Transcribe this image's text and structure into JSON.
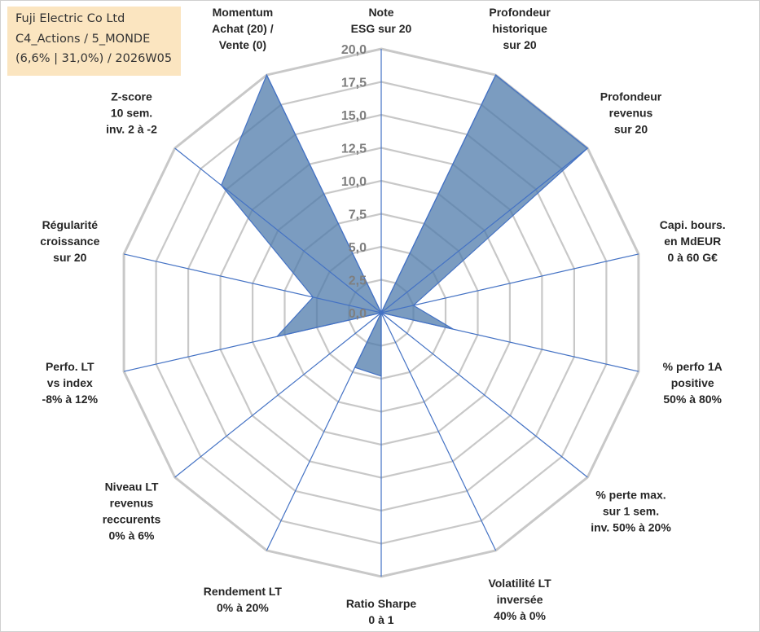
{
  "info": {
    "line1": "Fuji Electric Co Ltd",
    "line2": "C4_Actions / 5_MONDE",
    "line3": "(6,6% | 31,0%) / 2026W05"
  },
  "chart_data": {
    "type": "radar",
    "rmin": 0,
    "rmax": 20,
    "ticks": [
      "0,0",
      "2,5",
      "5,0",
      "7,5",
      "10,0",
      "12,5",
      "15,0",
      "17,5",
      "20,0"
    ],
    "categories": [
      [
        "Note",
        "ESG sur 20"
      ],
      [
        "Profondeur",
        "historique",
        "sur 20"
      ],
      [
        "Profondeur",
        "revenus",
        "sur 20"
      ],
      [
        "Capi. bours.",
        "en MdEUR",
        "0 à 60 G€"
      ],
      [
        "% perfo 1A",
        "positive",
        "50% à 80%"
      ],
      [
        "% perte max.",
        "sur 1 sem.",
        "inv. 50% à 20%"
      ],
      [
        "Volatilité LT",
        "inversée",
        "40% à 0%"
      ],
      [
        "Ratio Sharpe",
        "0 à 1"
      ],
      [
        "Rendement LT",
        "0% à 20%"
      ],
      [
        "Niveau LT",
        "revenus",
        "reccurents",
        "0% à 6%"
      ],
      [
        "Perfo. LT",
        "vs index",
        "-8% à 12%"
      ],
      [
        "Régularité",
        "croissance",
        "sur 20"
      ],
      [
        "Z-score",
        "10 sem.",
        "inv. 2 à -2"
      ],
      [
        "Momentum",
        "Achat (20) /",
        "Vente (0)"
      ]
    ],
    "values": [
      0,
      20,
      20,
      2.5,
      5.6,
      0,
      0,
      4.8,
      4.6,
      0,
      8.1,
      5.3,
      15.5,
      20
    ],
    "colors": {
      "fill": "#4f7bab",
      "stroke": "#4472c4",
      "grid": "#c8c8c8",
      "spoke": "#4472c4"
    }
  }
}
